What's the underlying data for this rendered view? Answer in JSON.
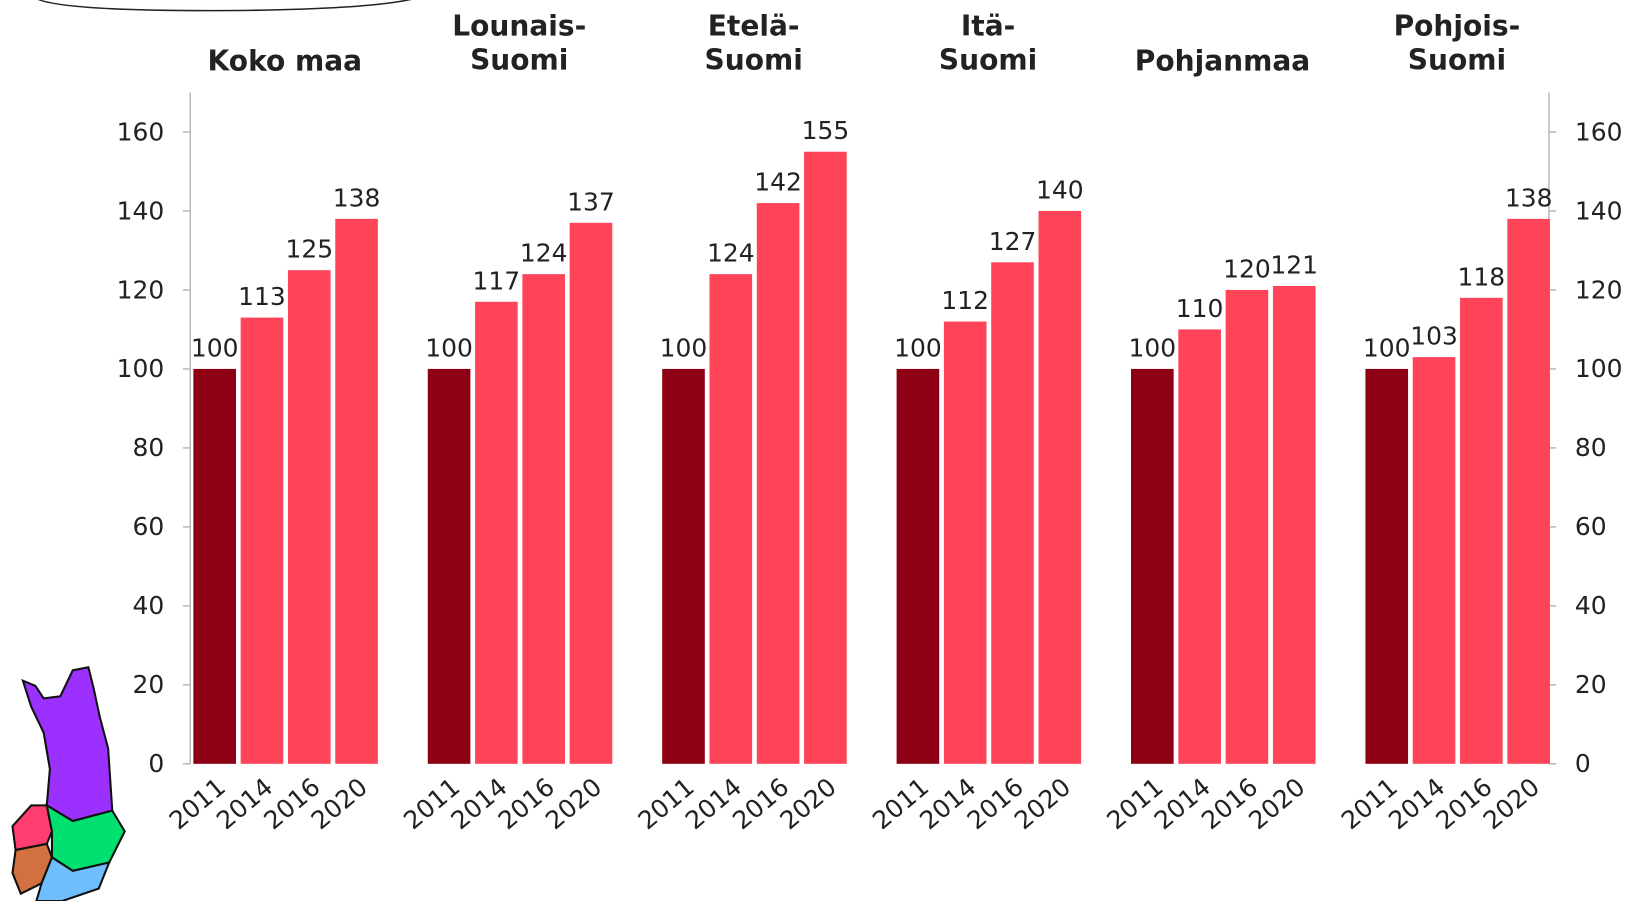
{
  "chart_data": {
    "type": "bar",
    "categories": [
      "2011",
      "2014",
      "2016",
      "2020"
    ],
    "colors": [
      "#8e0013",
      "#ff4459",
      "#ff4459",
      "#ff4459"
    ],
    "ylim": [
      0,
      170
    ],
    "yticks": [
      0,
      20,
      40,
      60,
      80,
      100,
      120,
      140,
      160
    ],
    "y2lim": [
      0,
      170
    ],
    "y2ticks": [
      0,
      20,
      40,
      60,
      80,
      100,
      120,
      140,
      160
    ],
    "panels": [
      {
        "title": [
          "Koko maa"
        ],
        "values": [
          100,
          113,
          125,
          138
        ]
      },
      {
        "title": [
          "Lounais-",
          "Suomi"
        ],
        "values": [
          100,
          117,
          124,
          137
        ]
      },
      {
        "title": [
          "Etelä-",
          "Suomi"
        ],
        "values": [
          100,
          124,
          142,
          155
        ]
      },
      {
        "title": [
          "Itä-",
          "Suomi"
        ],
        "values": [
          100,
          112,
          127,
          140
        ]
      },
      {
        "title": [
          "Pohjanmaa"
        ],
        "values": [
          100,
          110,
          120,
          121
        ]
      },
      {
        "title": [
          "Pohjois-",
          "Suomi"
        ],
        "values": [
          100,
          103,
          118,
          138
        ]
      }
    ]
  }
}
